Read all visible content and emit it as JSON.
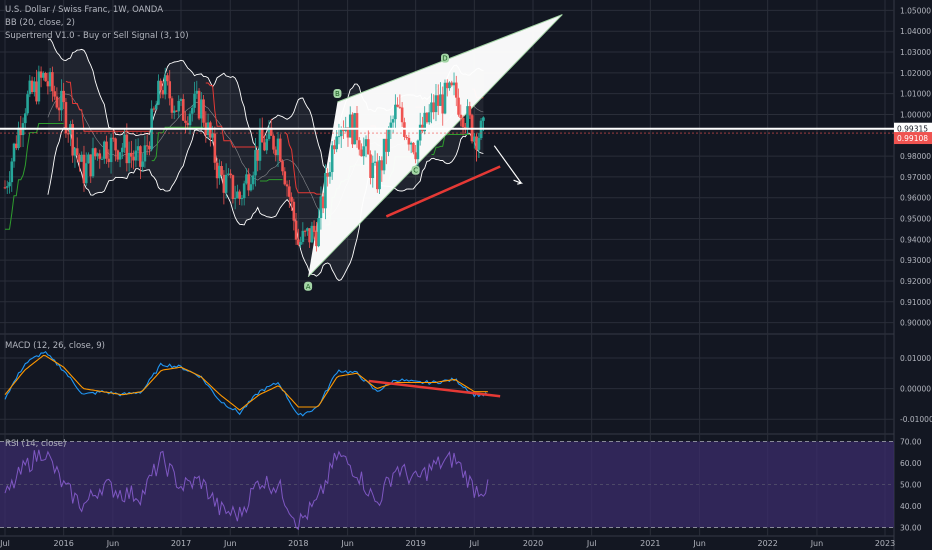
{
  "legend": {
    "symbol": "U.S. Dollar / Swiss Franc, 1W, OANDA",
    "bb": "BB (20, close, 2)",
    "supertrend": "Supertrend V1.0 - Buy or Sell Signal (3, 10)",
    "macd": "MACD (12, 26, close, 9)",
    "rsi": "RSI (14, close)"
  },
  "colors": {
    "background": "#131722",
    "grid": "#2a2e39",
    "axis_text": "#b2b5be",
    "up_candle": "#26a69a",
    "down_candle": "#ef5350",
    "bollinger": "#ffffff",
    "supertrend_up": "#2e9d2e",
    "supertrend_down": "#e53935",
    "macd_line": "#2196f3",
    "signal_line": "#ff9800",
    "rsi_line": "#7e57c2",
    "rsi_band": "#3b2c6b",
    "wedge": "#ffffff",
    "trendline": "#e53935",
    "price_badge": "#ef5350"
  },
  "chart_data": [
    {
      "type": "candlestick",
      "panel": "price",
      "x_axis_labels": [
        "Jul",
        "2016",
        "Jun",
        "2017",
        "Jun",
        "2018",
        "Jun",
        "2019",
        "Jul",
        "2020",
        "Jul",
        "2021",
        "Jun",
        "2022",
        "Jun",
        "2023"
      ],
      "y_axis_labels": [
        "1.05000",
        "1.04000",
        "1.03000",
        "1.02000",
        "1.01000",
        "1.00000",
        "0.98000",
        "0.97000",
        "0.96000",
        "0.95000",
        "0.94000",
        "0.93000",
        "0.92000",
        "0.91000",
        "0.90000"
      ],
      "ylim": [
        0.895,
        1.055
      ],
      "price_labels": {
        "horizontal_line": "0.99315",
        "last_price": "0.99108"
      },
      "horizontal_line_value": 0.99315,
      "last_price_value": 0.99108,
      "wave_labels": [
        "A",
        "B",
        "C",
        "D"
      ],
      "wave_points": [
        {
          "label": "A",
          "date": "2018-02",
          "value": 0.922
        },
        {
          "label": "B",
          "date": "2018-05",
          "value": 1.006
        },
        {
          "label": "C",
          "date": "2019-01",
          "value": 0.972
        },
        {
          "label": "D",
          "date": "2019-04",
          "value": 1.023
        }
      ],
      "candles_approx": {
        "dates": [
          "2015-07",
          "2015-09",
          "2015-11",
          "2016-01",
          "2016-03",
          "2016-05",
          "2016-07",
          "2016-09",
          "2016-11",
          "2017-01",
          "2017-03",
          "2017-05",
          "2017-07",
          "2017-09",
          "2017-11",
          "2018-01",
          "2018-03",
          "2018-05",
          "2018-07",
          "2018-09",
          "2018-11",
          "2019-01",
          "2019-03",
          "2019-05",
          "2019-07"
        ],
        "close": [
          0.965,
          1.005,
          1.018,
          1.002,
          0.972,
          0.985,
          0.985,
          0.975,
          1.015,
          1.001,
          1.005,
          0.97,
          0.96,
          0.985,
          0.988,
          0.938,
          0.945,
          0.998,
          0.992,
          0.968,
          1.002,
          0.985,
          1.005,
          1.01,
          0.991
        ]
      }
    },
    {
      "type": "line",
      "panel": "macd",
      "y_axis_labels": [
        "0.01000",
        "0.00000",
        "-0.01000"
      ],
      "ylim": [
        -0.0145,
        0.0175
      ],
      "x_dates": [
        "2015-07",
        "2015-09",
        "2015-11",
        "2016-01",
        "2016-03",
        "2016-05",
        "2016-07",
        "2016-09",
        "2016-11",
        "2017-01",
        "2017-03",
        "2017-05",
        "2017-07",
        "2017-09",
        "2017-11",
        "2018-01",
        "2018-03",
        "2018-05",
        "2018-07",
        "2018-09",
        "2018-11",
        "2019-01",
        "2019-03",
        "2019-05",
        "2019-07"
      ],
      "series": [
        {
          "values": [
            -0.003,
            0.008,
            0.012,
            0.006,
            -0.002,
            -0.001,
            -0.002,
            -0.001,
            0.008,
            0.007,
            0.004,
            -0.004,
            -0.008,
            -0.001,
            0.002,
            -0.009,
            -0.006,
            0.006,
            0.005,
            -0.001,
            0.003,
            0.002,
            0.002,
            0.003,
            -0.002
          ]
        },
        {
          "values": [
            -0.002,
            0.006,
            0.011,
            0.007,
            0.0,
            -0.001,
            -0.002,
            -0.001,
            0.006,
            0.007,
            0.004,
            -0.002,
            -0.007,
            -0.002,
            0.001,
            -0.006,
            -0.006,
            0.004,
            0.005,
            0.0,
            0.002,
            0.002,
            0.002,
            0.003,
            -0.001
          ]
        }
      ]
    },
    {
      "type": "line",
      "panel": "rsi",
      "y_axis_labels": [
        "70.00",
        "60.00",
        "50.00",
        "40.00",
        "30.00"
      ],
      "ylim": [
        27,
        73
      ],
      "band": [
        30,
        70
      ],
      "x_dates": [
        "2015-07",
        "2015-09",
        "2015-11",
        "2016-01",
        "2016-03",
        "2016-05",
        "2016-07",
        "2016-09",
        "2016-11",
        "2017-01",
        "2017-03",
        "2017-05",
        "2017-07",
        "2017-09",
        "2017-11",
        "2018-01",
        "2018-03",
        "2018-05",
        "2018-07",
        "2018-09",
        "2018-11",
        "2019-01",
        "2019-03",
        "2019-05",
        "2019-07"
      ],
      "values": [
        44,
        58,
        66,
        49,
        40,
        50,
        46,
        45,
        62,
        49,
        52,
        38,
        36,
        52,
        49,
        32,
        42,
        64,
        56,
        41,
        58,
        52,
        59,
        62,
        48
      ]
    }
  ]
}
